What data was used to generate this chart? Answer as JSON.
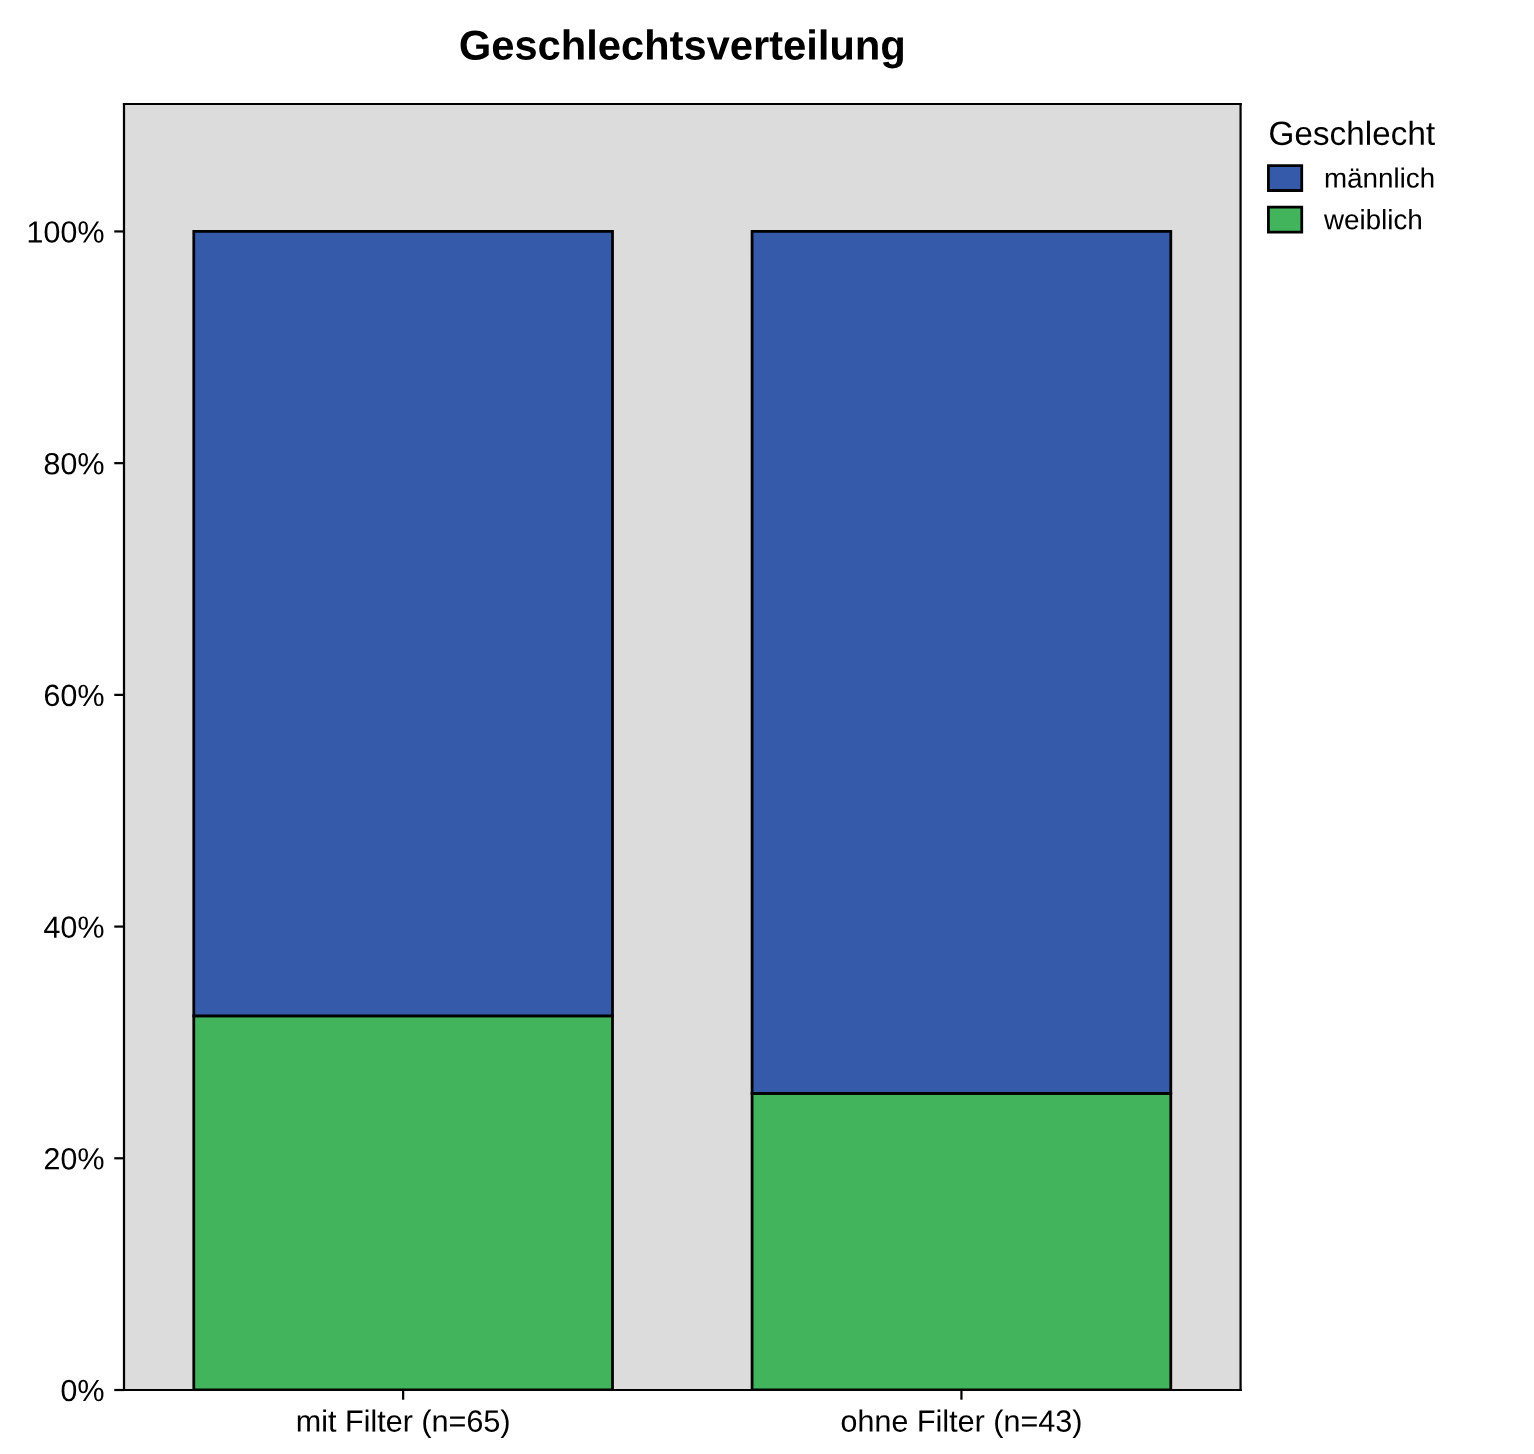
{
  "chart_data": {
    "type": "bar",
    "title": "Geschlechtsverteilung",
    "legend_title": "Geschlecht",
    "categories": [
      "mit Filter (n=65)",
      "ohne Filter (n=43)"
    ],
    "series": [
      {
        "name": "weiblich",
        "color": "#41b45c",
        "values": [
          32.3,
          25.6
        ]
      },
      {
        "name": "männlich",
        "color": "#345aa9",
        "values": [
          67.7,
          74.4
        ]
      }
    ],
    "stacked": true,
    "ylim": [
      0,
      111
    ],
    "yticks": [
      {
        "value": 0,
        "label": "0%"
      },
      {
        "value": 20,
        "label": "20%"
      },
      {
        "value": 40,
        "label": "40%"
      },
      {
        "value": 60,
        "label": "60%"
      },
      {
        "value": 80,
        "label": "80%"
      },
      {
        "value": 100,
        "label": "100%"
      }
    ],
    "grid": false,
    "legend": "top right"
  }
}
